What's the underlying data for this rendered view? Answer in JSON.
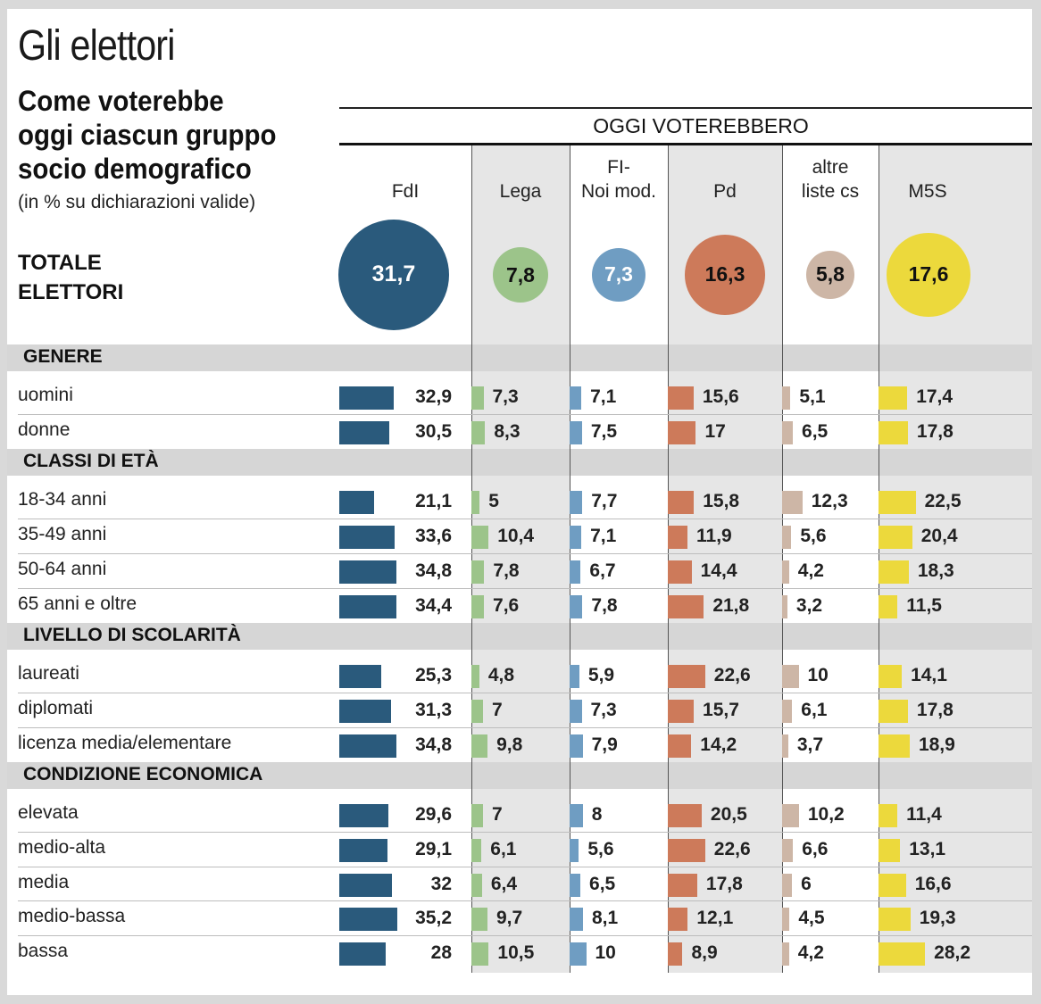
{
  "title": "Gli elettori",
  "subtitle": "Come voterebbe\noggi ciascun gruppo\nsocio demografico",
  "note": "(in % su dichiarazioni valide)",
  "header_group": "OGGI VOTEREBBERO",
  "total_label": "TOTALE\nELETTORI",
  "colors": {
    "fdi": "#2a5a7c",
    "lega": "#9cc48a",
    "fi": "#6f9dc2",
    "pd": "#cd7a5a",
    "altre": "#cdb6a6",
    "m5s": "#ecd93c"
  },
  "chart_data": {
    "type": "table",
    "parties": [
      {
        "key": "fdi",
        "name": "FdI",
        "total": "31,7"
      },
      {
        "key": "lega",
        "name": "Lega",
        "total": "7,8"
      },
      {
        "key": "fi",
        "name": "FI-\nNoi mod.",
        "total": "7,3"
      },
      {
        "key": "pd",
        "name": "Pd",
        "total": "16,3"
      },
      {
        "key": "altre",
        "name": "altre\nliste cs",
        "total": "5,8"
      },
      {
        "key": "m5s",
        "name": "M5S",
        "total": "17,6"
      }
    ],
    "sections": [
      {
        "name": "GENERE",
        "rows": [
          {
            "label": "uomini",
            "values": [
              "32,9",
              "7,3",
              "7,1",
              "15,6",
              "5,1",
              "17,4"
            ]
          },
          {
            "label": "donne",
            "values": [
              "30,5",
              "8,3",
              "7,5",
              "17",
              "6,5",
              "17,8"
            ]
          }
        ]
      },
      {
        "name": "CLASSI DI ETÀ",
        "rows": [
          {
            "label": "18-34 anni",
            "values": [
              "21,1",
              "5",
              "7,7",
              "15,8",
              "12,3",
              "22,5"
            ]
          },
          {
            "label": "35-49 anni",
            "values": [
              "33,6",
              "10,4",
              "7,1",
              "11,9",
              "5,6",
              "20,4"
            ]
          },
          {
            "label": "50-64 anni",
            "values": [
              "34,8",
              "7,8",
              "6,7",
              "14,4",
              "4,2",
              "18,3"
            ]
          },
          {
            "label": "65 anni e oltre",
            "values": [
              "34,4",
              "7,6",
              "7,8",
              "21,8",
              "3,2",
              "11,5"
            ]
          }
        ]
      },
      {
        "name": "LIVELLO DI SCOLARITÀ",
        "rows": [
          {
            "label": "laureati",
            "values": [
              "25,3",
              "4,8",
              "5,9",
              "22,6",
              "10",
              "14,1"
            ]
          },
          {
            "label": "diplomati",
            "values": [
              "31,3",
              "7",
              "7,3",
              "15,7",
              "6,1",
              "17,8"
            ]
          },
          {
            "label": "licenza media/elementare",
            "values": [
              "34,8",
              "9,8",
              "7,9",
              "14,2",
              "3,7",
              "18,9"
            ]
          }
        ]
      },
      {
        "name": "CONDIZIONE ECONOMICA",
        "rows": [
          {
            "label": "elevata",
            "values": [
              "29,6",
              "7",
              "8",
              "20,5",
              "10,2",
              "11,4"
            ]
          },
          {
            "label": "medio-alta",
            "values": [
              "29,1",
              "6,1",
              "5,6",
              "22,6",
              "6,6",
              "13,1"
            ]
          },
          {
            "label": "media",
            "values": [
              "32",
              "6,4",
              "6,5",
              "17,8",
              "6",
              "16,6"
            ]
          },
          {
            "label": "medio-bassa",
            "values": [
              "35,2",
              "9,7",
              "8,1",
              "12,1",
              "4,5",
              "19,3"
            ]
          },
          {
            "label": "bassa",
            "values": [
              "28",
              "10,5",
              "10",
              "8,9",
              "4,2",
              "28,2"
            ]
          }
        ]
      }
    ]
  }
}
